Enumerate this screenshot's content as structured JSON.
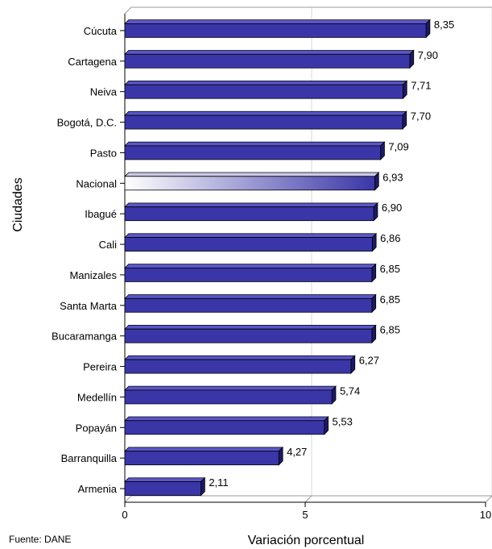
{
  "chart_data": {
    "type": "bar",
    "orientation": "horizontal",
    "categories": [
      "Cúcuta",
      "Cartagena",
      "Neiva",
      "Bogotá, D.C.",
      "Pasto",
      "Nacional",
      "Ibagué",
      "Cali",
      "Manizales",
      "Santa Marta",
      "Bucaramanga",
      "Pereira",
      "Medellín",
      "Popayán",
      "Barranquilla",
      "Armenia"
    ],
    "values": [
      8.35,
      7.9,
      7.71,
      7.7,
      7.09,
      6.93,
      6.9,
      6.86,
      6.85,
      6.85,
      6.85,
      6.27,
      5.74,
      5.53,
      4.27,
      2.11
    ],
    "value_labels": [
      "8,35",
      "7,90",
      "7,71",
      "7,70",
      "7,09",
      "6,93",
      "6,90",
      "6,86",
      "6,85",
      "6,85",
      "6,85",
      "6,27",
      "5,74",
      "5,53",
      "4,27",
      "2,11"
    ],
    "highlight_category": "Nacional",
    "xlabel": "Variación porcentual",
    "ylabel": "Ciudades",
    "xlim": [
      0,
      10
    ],
    "xticks": [
      "0",
      "5",
      "10"
    ],
    "grid": "vertical",
    "colors": {
      "bar": "#3a36a8",
      "bar_top": "#5a56c8",
      "bar_side": "#1c1a66",
      "highlight_start": "#ffffff",
      "highlight_end": "#3a36a8"
    }
  },
  "footer": {
    "source": "Fuente: DANE"
  }
}
